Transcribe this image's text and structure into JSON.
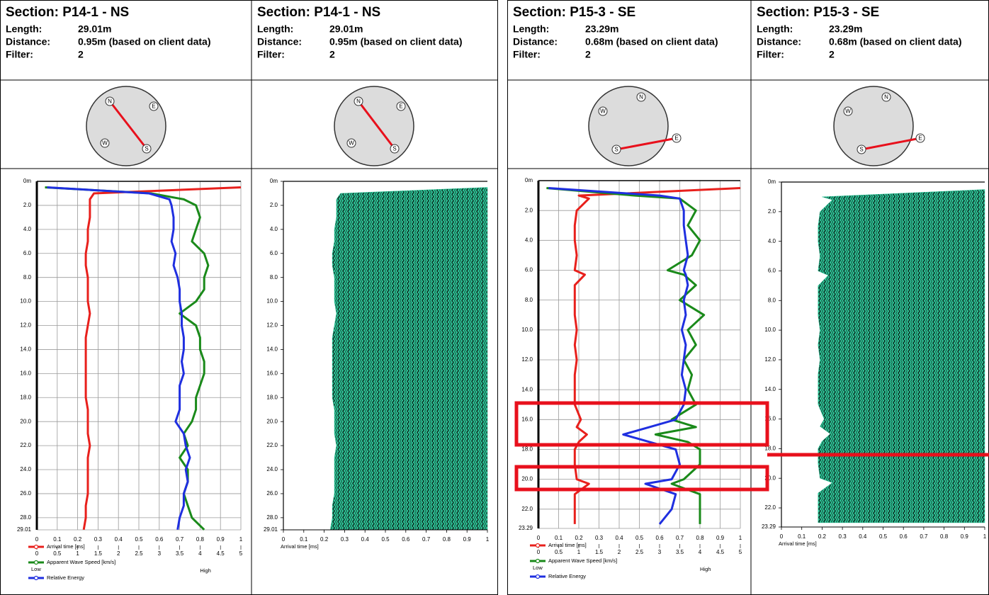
{
  "chart_data": [
    {
      "type": "line",
      "title": "Section: P14-1 - NS",
      "info": [
        {
          "label": "Length:",
          "value": "29.01m"
        },
        {
          "label": "Distance:",
          "value": "0.95m (based on client data)"
        },
        {
          "label": "Filter:",
          "value": "2"
        }
      ],
      "compass": [
        "N",
        "E",
        "S",
        "W"
      ],
      "ylim": [
        0,
        29.01
      ],
      "yticks": [
        {
          "value": 0,
          "label": "0m"
        },
        {
          "value": 2,
          "label": "2.0"
        },
        {
          "value": 4,
          "label": "4.0"
        },
        {
          "value": 6,
          "label": "6.0"
        },
        {
          "value": 8,
          "label": "8.0"
        },
        {
          "value": 10,
          "label": "10.0"
        },
        {
          "value": 12,
          "label": "12.0"
        },
        {
          "value": 14,
          "label": "14.0"
        },
        {
          "value": 16,
          "label": "16.0"
        },
        {
          "value": 18,
          "label": "18.0"
        },
        {
          "value": 20,
          "label": "20.0"
        },
        {
          "value": 22,
          "label": "22.0"
        },
        {
          "value": 24,
          "label": "24.0"
        },
        {
          "value": 26,
          "label": "26.0"
        },
        {
          "value": 28,
          "label": "28.0"
        },
        29.01
      ],
      "xlim": [
        0,
        1
      ],
      "xticks": [
        0,
        0.1,
        0.2,
        0.3,
        0.4,
        0.5,
        0.6,
        0.7,
        0.8,
        0.9,
        1
      ],
      "x2lim": [
        0,
        5
      ],
      "x2ticks": [
        0,
        0.5,
        1,
        1.5,
        2,
        2.5,
        3,
        3.5,
        4,
        4.5,
        5
      ],
      "grid": true,
      "energy_scale": [
        "Low",
        "High"
      ],
      "depth": [
        0.5,
        1,
        1.5,
        2,
        3,
        4,
        5,
        6,
        7,
        8,
        9,
        10,
        11,
        12,
        13,
        14,
        15,
        16,
        17,
        18,
        19,
        20,
        21,
        22,
        23,
        24,
        25,
        26,
        27,
        28,
        29
      ],
      "series": [
        {
          "name": "Arrival time [ms]",
          "color": "#e8201c",
          "axis": "x",
          "values": [
            1.0,
            0.28,
            0.26,
            0.26,
            0.26,
            0.25,
            0.25,
            0.24,
            0.24,
            0.25,
            0.25,
            0.25,
            0.26,
            0.25,
            0.24,
            0.24,
            0.24,
            0.24,
            0.24,
            0.24,
            0.25,
            0.25,
            0.25,
            0.26,
            0.25,
            0.25,
            0.25,
            0.25,
            0.24,
            0.24,
            0.23
          ]
        },
        {
          "name": "Apparent Wave Speed [km/s]",
          "color": "#1a8a1a",
          "axis": "x2",
          "values": [
            0.2,
            2.8,
            3.6,
            3.9,
            4.0,
            3.9,
            3.8,
            4.1,
            4.2,
            4.1,
            4.1,
            3.9,
            3.5,
            3.9,
            4.0,
            4.0,
            4.1,
            4.1,
            4.0,
            3.9,
            3.9,
            3.8,
            3.6,
            3.7,
            3.5,
            3.7,
            3.7,
            3.6,
            3.7,
            3.8,
            4.1
          ]
        },
        {
          "name": "Relative Energy",
          "color": "#1f2fe0",
          "axis": "x",
          "values": [
            0.05,
            0.55,
            0.65,
            0.66,
            0.67,
            0.67,
            0.66,
            0.68,
            0.67,
            0.69,
            0.7,
            0.7,
            0.71,
            0.71,
            0.72,
            0.72,
            0.71,
            0.72,
            0.7,
            0.7,
            0.7,
            0.68,
            0.72,
            0.73,
            0.75,
            0.73,
            0.74,
            0.72,
            0.72,
            0.7,
            0.69
          ]
        }
      ]
    },
    {
      "type": "waterfall",
      "title": "Section: P14-1 - NS",
      "info": [
        {
          "label": "Length:",
          "value": "29.01m"
        },
        {
          "label": "Distance:",
          "value": "0.95m (based on client data)"
        },
        {
          "label": "Filter:",
          "value": "2"
        }
      ],
      "compass": [
        "N",
        "E",
        "S",
        "W"
      ],
      "ylim": [
        0,
        29.01
      ],
      "yticks": [
        {
          "value": 0,
          "label": "0m"
        },
        {
          "value": 2,
          "label": "2.0"
        },
        {
          "value": 4,
          "label": "4.0"
        },
        {
          "value": 6,
          "label": "6.0"
        },
        {
          "value": 8,
          "label": "8.0"
        },
        {
          "value": 10,
          "label": "10.0"
        },
        {
          "value": 12,
          "label": "12.0"
        },
        {
          "value": 14,
          "label": "14.0"
        },
        {
          "value": 16,
          "label": "16.0"
        },
        {
          "value": 18,
          "label": "18.0"
        },
        {
          "value": 20,
          "label": "20.0"
        },
        {
          "value": 22,
          "label": "22.0"
        },
        {
          "value": 24,
          "label": "24.0"
        },
        {
          "value": 26,
          "label": "26.0"
        },
        {
          "value": 28,
          "label": "28.0"
        },
        29.01
      ],
      "xlim": [
        0,
        1
      ],
      "xticks": [
        0,
        0.1,
        0.2,
        0.3,
        0.4,
        0.5,
        0.6,
        0.7,
        0.8,
        0.9,
        1
      ],
      "xlabel": "Arrival time [ms]",
      "color": "#2fc79a"
    },
    {
      "type": "line",
      "title": "Section: P15-3 - SE",
      "info": [
        {
          "label": "Length:",
          "value": "23.29m"
        },
        {
          "label": "Distance:",
          "value": "0.68m (based on client data)"
        },
        {
          "label": "Filter:",
          "value": "2"
        }
      ],
      "compass": [
        "N",
        "E",
        "S",
        "W"
      ],
      "ylim": [
        0,
        23.29
      ],
      "yticks": [
        {
          "value": 0,
          "label": "0m"
        },
        {
          "value": 2,
          "label": "2.0"
        },
        {
          "value": 4,
          "label": "4.0"
        },
        {
          "value": 6,
          "label": "6.0"
        },
        {
          "value": 8,
          "label": "8.0"
        },
        {
          "value": 10,
          "label": "10.0"
        },
        {
          "value": 12,
          "label": "12.0"
        },
        {
          "value": 14,
          "label": "14.0"
        },
        {
          "value": 16,
          "label": "16.0"
        },
        {
          "value": 18,
          "label": "18.0"
        },
        {
          "value": 20,
          "label": "20.0"
        },
        {
          "value": 22,
          "label": "22.0"
        },
        23.29
      ],
      "xlim": [
        0,
        1
      ],
      "xticks": [
        0,
        0.1,
        0.2,
        0.3,
        0.4,
        0.5,
        0.6,
        0.7,
        0.8,
        0.9,
        1
      ],
      "x2lim": [
        0,
        5
      ],
      "x2ticks": [
        0,
        0.5,
        1,
        1.5,
        2,
        2.5,
        3,
        3.5,
        4,
        4.5,
        5
      ],
      "grid": true,
      "energy_scale": [
        "Low",
        "High"
      ],
      "depth": [
        0.5,
        1,
        1.2,
        2,
        3,
        4,
        5,
        6,
        6.3,
        7,
        8,
        9,
        10,
        11,
        12,
        13,
        14,
        15,
        16,
        16.5,
        17,
        17.5,
        18,
        19,
        20,
        20.3,
        21,
        22,
        23
      ],
      "series": [
        {
          "name": "Arrival time [ms]",
          "color": "#e8201c",
          "axis": "x",
          "values": [
            1.0,
            0.2,
            0.25,
            0.19,
            0.18,
            0.18,
            0.19,
            0.18,
            0.23,
            0.18,
            0.18,
            0.18,
            0.19,
            0.18,
            0.19,
            0.18,
            0.18,
            0.18,
            0.21,
            0.19,
            0.24,
            0.2,
            0.18,
            0.18,
            0.19,
            0.25,
            0.18,
            0.18,
            0.18
          ]
        },
        {
          "name": "Apparent Wave Speed [km/s]",
          "color": "#1a8a1a",
          "axis": "x2",
          "values": [
            0.2,
            2.4,
            3.5,
            3.9,
            3.7,
            4.0,
            3.8,
            3.2,
            3.6,
            3.9,
            3.5,
            4.1,
            3.7,
            3.9,
            3.6,
            3.8,
            3.7,
            3.9,
            3.3,
            3.9,
            2.9,
            3.7,
            4.0,
            4.0,
            3.6,
            3.3,
            4.0,
            4.0,
            4.0
          ]
        },
        {
          "name": "Relative Energy",
          "color": "#1f2fe0",
          "axis": "x",
          "values": [
            0.05,
            0.6,
            0.7,
            0.72,
            0.72,
            0.73,
            0.74,
            0.72,
            0.73,
            0.74,
            0.72,
            0.73,
            0.71,
            0.73,
            0.72,
            0.71,
            0.73,
            0.72,
            0.68,
            0.55,
            0.42,
            0.55,
            0.68,
            0.7,
            0.66,
            0.53,
            0.68,
            0.66,
            0.6
          ]
        }
      ]
    },
    {
      "type": "waterfall",
      "title": "Section: P15-3 - SE",
      "info": [
        {
          "label": "Length:",
          "value": "23.29m"
        },
        {
          "label": "Distance:",
          "value": "0.68m (based on client data)"
        },
        {
          "label": "Filter:",
          "value": "2"
        }
      ],
      "compass": [
        "N",
        "E",
        "S",
        "W"
      ],
      "ylim": [
        0,
        23.29
      ],
      "yticks": [
        {
          "value": 0,
          "label": "0m"
        },
        {
          "value": 2,
          "label": "2.0"
        },
        {
          "value": 4,
          "label": "4.0"
        },
        {
          "value": 6,
          "label": "6.0"
        },
        {
          "value": 8,
          "label": "8.0"
        },
        {
          "value": 10,
          "label": "10.0"
        },
        {
          "value": 12,
          "label": "12.0"
        },
        {
          "value": 14,
          "label": "14.0"
        },
        {
          "value": 16,
          "label": "16.0"
        },
        {
          "value": 18,
          "label": "18.0"
        },
        {
          "value": 20,
          "label": "20.0"
        },
        {
          "value": 22,
          "label": "22.0"
        },
        23.29
      ],
      "xlim": [
        0,
        1
      ],
      "xticks": [
        0,
        0.1,
        0.2,
        0.3,
        0.4,
        0.5,
        0.6,
        0.7,
        0.8,
        0.9,
        1
      ],
      "xlabel": "Arrival time [ms]",
      "color": "#2fc79a"
    }
  ]
}
